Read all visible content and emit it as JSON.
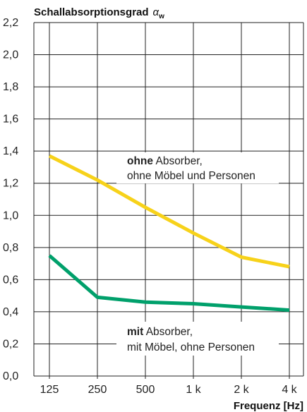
{
  "chart_data": {
    "type": "line",
    "title": "",
    "ylabel": "Schallabsorptionsgrad",
    "ylabel_symbol": "α",
    "ylabel_subscript": "w",
    "xlabel": "Frequenz [Hz]",
    "categories": [
      "125",
      "250",
      "500",
      "1 k",
      "2 k",
      "4 k"
    ],
    "ylim": [
      0,
      2.2
    ],
    "yticks": [
      "0,0",
      "0,2",
      "0,4",
      "0,6",
      "0,8",
      "1,0",
      "1,2",
      "1,4",
      "1,6",
      "1,8",
      "2,0",
      "2,2"
    ],
    "grid": true,
    "series": [
      {
        "key": "ohne",
        "values": [
          1.37,
          1.22,
          1.05,
          0.89,
          0.74,
          0.68
        ],
        "color": "#f7d21a",
        "annotation_bold": "ohne",
        "annotation_line1": " Absorber,",
        "annotation_line2": "ohne Möbel und Personen"
      },
      {
        "key": "mit",
        "values": [
          0.75,
          0.49,
          0.46,
          0.45,
          0.43,
          0.41
        ],
        "color": "#00a06b",
        "annotation_bold": "mit",
        "annotation_line1": " Absorber,",
        "annotation_line2": "mit Möbel, ohne Personen"
      }
    ]
  }
}
